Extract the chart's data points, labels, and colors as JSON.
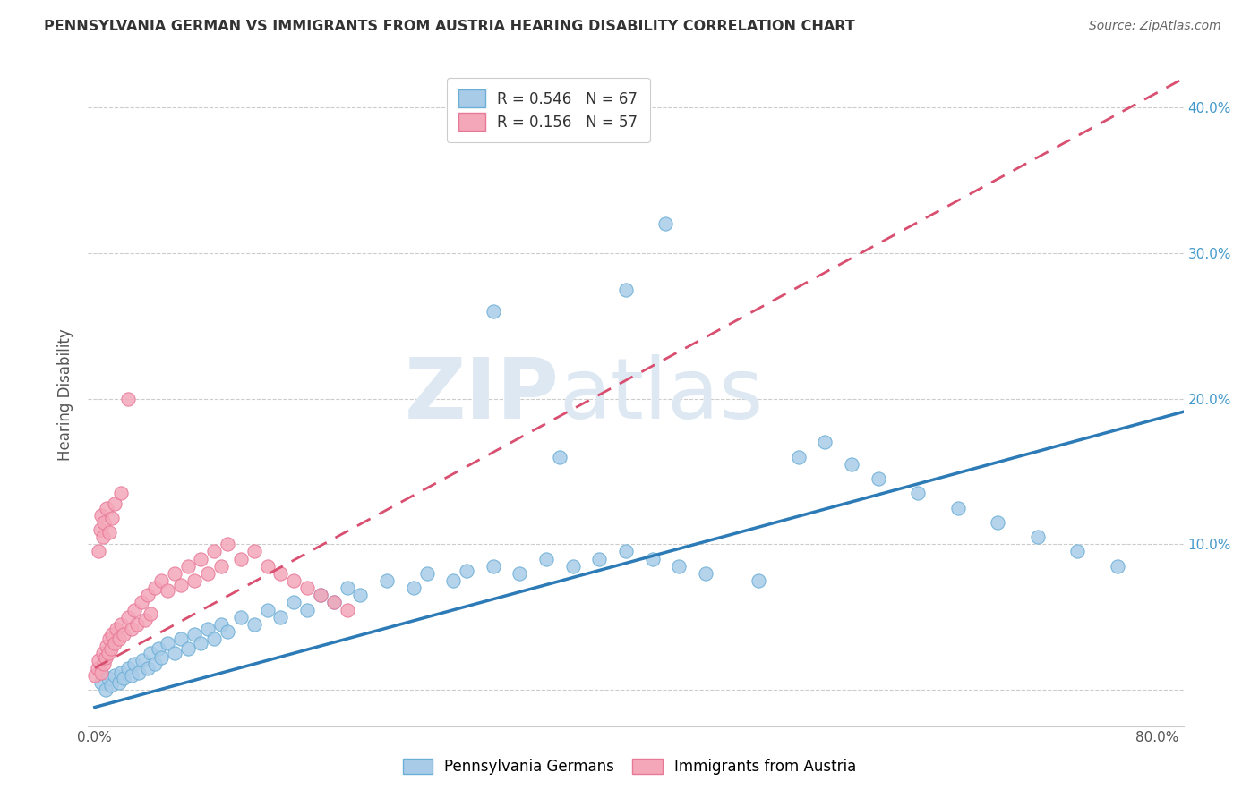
{
  "title": "PENNSYLVANIA GERMAN VS IMMIGRANTS FROM AUSTRIA HEARING DISABILITY CORRELATION CHART",
  "source": "Source: ZipAtlas.com",
  "ylabel": "Hearing Disability",
  "xlim": [
    -0.005,
    0.82
  ],
  "ylim": [
    -0.025,
    0.43
  ],
  "xticks": [
    0.0,
    0.2,
    0.4,
    0.6,
    0.8
  ],
  "xticklabels": [
    "0.0%",
    "",
    "",
    "",
    "80.0%"
  ],
  "yticks": [
    0.0,
    0.1,
    0.2,
    0.3,
    0.4
  ],
  "yticklabels": [
    "",
    "",
    "",
    "",
    ""
  ],
  "right_yticks": [
    0.1,
    0.2,
    0.3,
    0.4
  ],
  "right_yticklabels": [
    "10.0%",
    "20.0%",
    "30.0%",
    "40.0%"
  ],
  "blue_R": 0.546,
  "blue_N": 67,
  "pink_R": 0.156,
  "pink_N": 57,
  "blue_color": "#a8cce8",
  "pink_color": "#f4a7b9",
  "blue_edge_color": "#6baed6",
  "pink_edge_color": "#e87898",
  "blue_line_color": "#2c7bb6",
  "pink_line_color": "#d94f70",
  "watermark_zip_color": "#dde8f0",
  "watermark_atlas_color": "#dde8f0",
  "legend_label_blue": "Pennsylvania Germans",
  "legend_label_pink": "Immigrants from Austria",
  "blue_line_x0": 0.0,
  "blue_line_y0": -0.012,
  "blue_line_x1": 0.82,
  "blue_line_y1": 0.191,
  "pink_line_x0": 0.0,
  "pink_line_y0": 0.015,
  "pink_line_x1": 0.82,
  "pink_line_y1": 0.42,
  "background_color": "#ffffff",
  "grid_color": "#cccccc",
  "blue_scatter_x": [
    0.005,
    0.008,
    0.01,
    0.012,
    0.015,
    0.018,
    0.02,
    0.022,
    0.025,
    0.028,
    0.03,
    0.033,
    0.036,
    0.04,
    0.042,
    0.045,
    0.048,
    0.05,
    0.055,
    0.06,
    0.065,
    0.07,
    0.075,
    0.08,
    0.085,
    0.09,
    0.095,
    0.1,
    0.11,
    0.12,
    0.13,
    0.14,
    0.15,
    0.16,
    0.17,
    0.18,
    0.19,
    0.2,
    0.22,
    0.24,
    0.25,
    0.27,
    0.28,
    0.3,
    0.32,
    0.34,
    0.36,
    0.38,
    0.4,
    0.42,
    0.44,
    0.46,
    0.5,
    0.53,
    0.55,
    0.57,
    0.59,
    0.62,
    0.65,
    0.68,
    0.71,
    0.74,
    0.77,
    0.4,
    0.43,
    0.3,
    0.35
  ],
  "blue_scatter_y": [
    0.005,
    0.0,
    0.008,
    0.003,
    0.01,
    0.005,
    0.012,
    0.008,
    0.015,
    0.01,
    0.018,
    0.012,
    0.02,
    0.015,
    0.025,
    0.018,
    0.028,
    0.022,
    0.032,
    0.025,
    0.035,
    0.028,
    0.038,
    0.032,
    0.042,
    0.035,
    0.045,
    0.04,
    0.05,
    0.045,
    0.055,
    0.05,
    0.06,
    0.055,
    0.065,
    0.06,
    0.07,
    0.065,
    0.075,
    0.07,
    0.08,
    0.075,
    0.082,
    0.085,
    0.08,
    0.09,
    0.085,
    0.09,
    0.095,
    0.09,
    0.085,
    0.08,
    0.075,
    0.16,
    0.17,
    0.155,
    0.145,
    0.135,
    0.125,
    0.115,
    0.105,
    0.095,
    0.085,
    0.275,
    0.32,
    0.26,
    0.16
  ],
  "pink_scatter_x": [
    0.0,
    0.002,
    0.003,
    0.005,
    0.006,
    0.007,
    0.008,
    0.009,
    0.01,
    0.011,
    0.012,
    0.013,
    0.015,
    0.016,
    0.018,
    0.02,
    0.022,
    0.025,
    0.028,
    0.03,
    0.032,
    0.035,
    0.038,
    0.04,
    0.042,
    0.045,
    0.05,
    0.055,
    0.06,
    0.065,
    0.07,
    0.075,
    0.08,
    0.085,
    0.09,
    0.095,
    0.1,
    0.11,
    0.12,
    0.13,
    0.14,
    0.15,
    0.16,
    0.17,
    0.18,
    0.19,
    0.003,
    0.004,
    0.005,
    0.006,
    0.007,
    0.009,
    0.011,
    0.013,
    0.015,
    0.02,
    0.025
  ],
  "pink_scatter_y": [
    0.01,
    0.015,
    0.02,
    0.012,
    0.025,
    0.018,
    0.022,
    0.03,
    0.025,
    0.035,
    0.028,
    0.038,
    0.032,
    0.042,
    0.035,
    0.045,
    0.038,
    0.05,
    0.042,
    0.055,
    0.045,
    0.06,
    0.048,
    0.065,
    0.052,
    0.07,
    0.075,
    0.068,
    0.08,
    0.072,
    0.085,
    0.075,
    0.09,
    0.08,
    0.095,
    0.085,
    0.1,
    0.09,
    0.095,
    0.085,
    0.08,
    0.075,
    0.07,
    0.065,
    0.06,
    0.055,
    0.095,
    0.11,
    0.12,
    0.105,
    0.115,
    0.125,
    0.108,
    0.118,
    0.128,
    0.135,
    0.2
  ]
}
